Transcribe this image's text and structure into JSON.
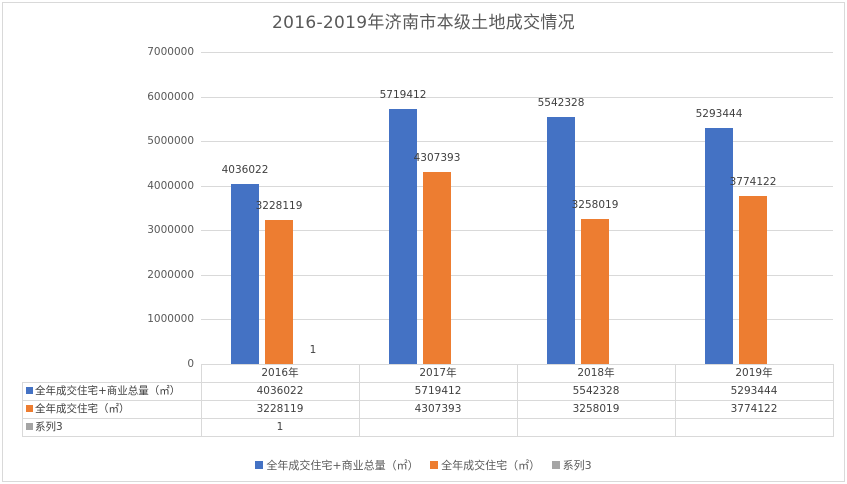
{
  "chart_data": {
    "type": "bar",
    "title": "2016-2019年济南市本级土地成交情况",
    "categories": [
      "2016年",
      "2017年",
      "2018年",
      "2019年"
    ],
    "series": [
      {
        "name": "全年成交住宅+商业总量（㎡）",
        "color": "#4472c4",
        "values": [
          4036022,
          5719412,
          5542328,
          5293444
        ]
      },
      {
        "name": "全年成交住宅（㎡）",
        "color": "#ed7d31",
        "values": [
          3228119,
          4307393,
          3258019,
          3774122
        ]
      },
      {
        "name": "系列3",
        "color": "#a5a5a5",
        "values": [
          1,
          null,
          null,
          null
        ]
      }
    ],
    "xlabel": "",
    "ylabel": "",
    "ylim": [
      0,
      7000000
    ],
    "yticks": [
      "7000000",
      "6000000",
      "5000000",
      "4000000",
      "3000000",
      "2000000",
      "1000000",
      "0"
    ],
    "grid": true,
    "legend_position": "bottom",
    "data_table": true
  },
  "labels": {
    "bar_labels": [
      [
        "4036022",
        "5719412",
        "5542328",
        "5293444"
      ],
      [
        "3228119",
        "4307393",
        "3258019",
        "3774122"
      ],
      [
        "1",
        "",
        "",
        ""
      ]
    ],
    "table_rows": [
      {
        "label": "全年成交住宅+商业总量（㎡）",
        "cells": [
          "4036022",
          "5719412",
          "5542328",
          "5293444"
        ]
      },
      {
        "label": "全年成交住宅（㎡）",
        "cells": [
          "3228119",
          "4307393",
          "3258019",
          "3774122"
        ]
      },
      {
        "label": "系列3",
        "cells": [
          "1",
          "",
          "",
          ""
        ]
      }
    ],
    "legend": [
      "全年成交住宅+商业总量（㎡）",
      "全年成交住宅（㎡）",
      "系列3"
    ]
  }
}
